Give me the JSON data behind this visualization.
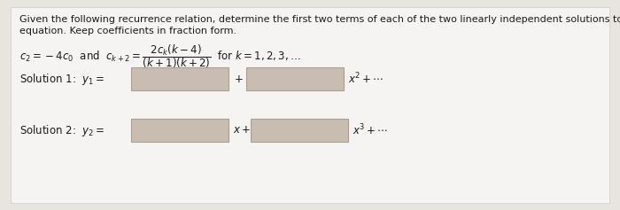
{
  "bg_color": "#e8e5e0",
  "inner_bg": "#f5f4f2",
  "text_color": "#1a1a1a",
  "box_color": "#c8bdb0",
  "box_edge_color": "#aaa090",
  "figsize": [
    7.0,
    2.37
  ],
  "dpi": 100,
  "header_line1": "Given the following recurrence relation, determine the first two terms of each of the two linearly independent solutions to the",
  "header_line2": "equation. Keep coefficients in fraction form.",
  "recurrence": "$c_2 = -4c_0$  and  $c_{k+2} = \\dfrac{2c_k(k-4)}{(k+1)(k+2)}$  for $k = 1, 2, 3, \\ldots$",
  "sol1_label": "Solution 1:  $y_1 =$",
  "sol1_plus": "$+$",
  "sol1_tail": "$x^2 + \\cdots$",
  "sol2_label": "Solution 2:  $y_2 =$",
  "sol2_x": "$x +$",
  "sol2_tail": "$x^3 + \\cdots$"
}
